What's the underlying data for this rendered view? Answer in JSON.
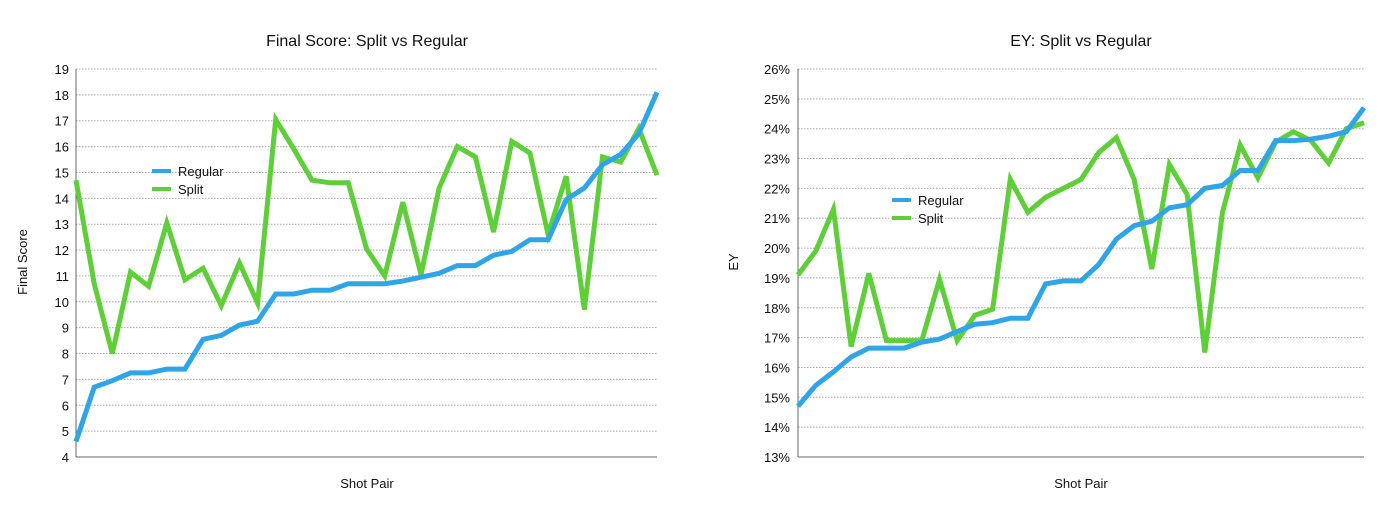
{
  "colors": {
    "regular": "#2fa5e8",
    "split": "#5ecf38"
  },
  "chart_data": [
    {
      "type": "line",
      "title": "Final Score: Split vs Regular",
      "xlabel": "Shot Pair",
      "ylabel": "Final Score",
      "ylim": [
        4,
        19
      ],
      "yticks": [
        "4",
        "5",
        "6",
        "7",
        "8",
        "9",
        "10",
        "11",
        "12",
        "13",
        "14",
        "15",
        "16",
        "17",
        "18",
        "19"
      ],
      "grid": true,
      "legend": "left-center",
      "series": [
        {
          "name": "Regular",
          "color_key": "regular",
          "values": [
            4.6,
            6.7,
            6.95,
            7.25,
            7.25,
            7.4,
            7.4,
            8.55,
            8.7,
            9.1,
            9.25,
            10.3,
            10.3,
            10.45,
            10.45,
            10.7,
            10.7,
            10.7,
            10.8,
            10.95,
            11.1,
            11.4,
            11.4,
            11.8,
            11.95,
            12.4,
            12.4,
            13.95,
            14.4,
            15.3,
            15.7,
            16.5,
            18.1
          ]
        },
        {
          "name": "Split",
          "color_key": "split",
          "values": [
            14.7,
            10.7,
            8.0,
            11.15,
            10.6,
            13.05,
            10.85,
            11.3,
            9.85,
            11.5,
            9.95,
            17.05,
            15.9,
            14.7,
            14.6,
            14.6,
            12.05,
            11.0,
            13.85,
            11.05,
            14.4,
            16.0,
            15.6,
            12.7,
            16.2,
            15.75,
            12.6,
            14.85,
            9.7,
            15.6,
            15.4,
            16.7,
            14.9
          ]
        }
      ]
    },
    {
      "type": "line",
      "title": "EY: Split vs Regular",
      "xlabel": "Shot Pair",
      "ylabel": "EY",
      "ylim": [
        13,
        26
      ],
      "yticks": [
        "13%",
        "14%",
        "15%",
        "16%",
        "17%",
        "18%",
        "19%",
        "20%",
        "21%",
        "22%",
        "23%",
        "24%",
        "25%",
        "26%"
      ],
      "grid": true,
      "legend": "left-center",
      "series": [
        {
          "name": "Regular",
          "color_key": "regular",
          "values": [
            14.7,
            15.4,
            15.85,
            16.35,
            16.65,
            16.65,
            16.65,
            16.85,
            16.95,
            17.2,
            17.45,
            17.5,
            17.65,
            17.65,
            18.8,
            18.9,
            18.9,
            19.45,
            20.3,
            20.75,
            20.9,
            21.35,
            21.45,
            22.0,
            22.1,
            22.6,
            22.6,
            23.6,
            23.6,
            23.65,
            23.75,
            23.9,
            24.7
          ]
        },
        {
          "name": "Split",
          "color_key": "split",
          "values": [
            19.1,
            19.9,
            21.3,
            16.7,
            19.15,
            16.9,
            16.9,
            16.9,
            18.95,
            16.9,
            17.75,
            17.95,
            22.3,
            21.2,
            21.7,
            22.0,
            22.3,
            23.2,
            23.7,
            22.3,
            19.3,
            22.8,
            21.8,
            16.5,
            21.2,
            23.45,
            22.35,
            23.55,
            23.9,
            23.6,
            22.85,
            24.0,
            24.2
          ]
        }
      ]
    }
  ]
}
